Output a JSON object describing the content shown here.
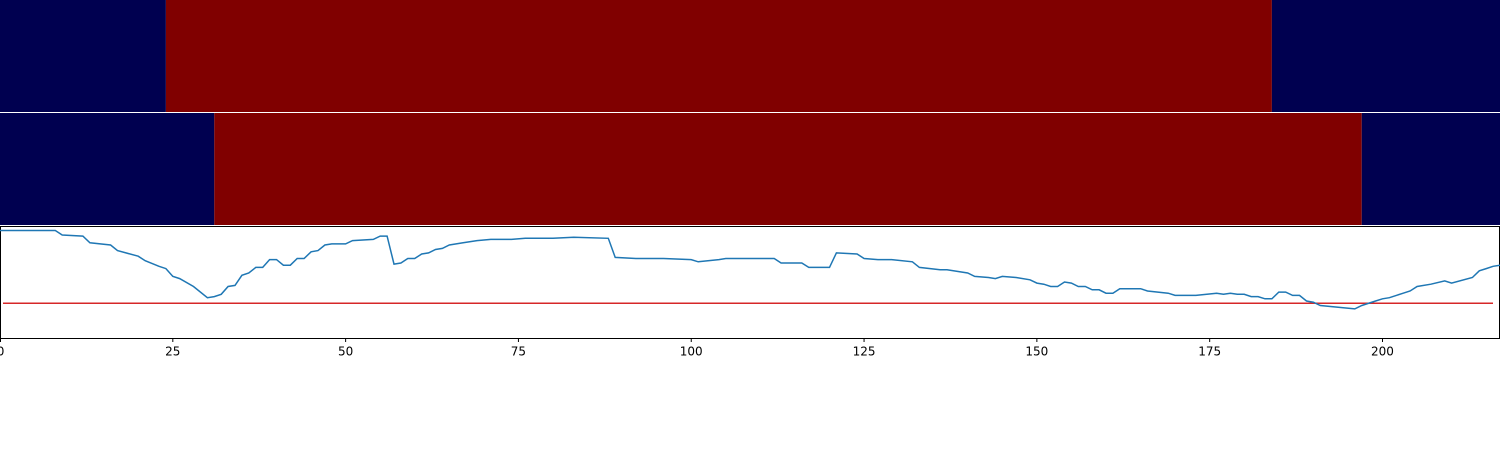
{
  "chart_data": {
    "type": "band-line",
    "xlim": [
      0,
      217
    ],
    "xticks": [
      0,
      25,
      50,
      75,
      100,
      125,
      150,
      175,
      200
    ],
    "band_colors": [
      "#000050",
      "#800000"
    ],
    "bands": [
      {
        "segments": [
          {
            "start": 0,
            "end": 24,
            "value": 0
          },
          {
            "start": 24,
            "end": 184,
            "value": 1
          },
          {
            "start": 184,
            "end": 217,
            "value": 0
          }
        ]
      },
      {
        "segments": [
          {
            "start": 0,
            "end": 31,
            "value": 0
          },
          {
            "start": 31,
            "end": 197,
            "value": 1
          },
          {
            "start": 197,
            "end": 217,
            "value": 0
          }
        ]
      }
    ],
    "ylim": [
      0,
      1
    ],
    "threshold": 0.31,
    "threshold_color": "#d62728",
    "line_color": "#1f77b4",
    "x": [
      0,
      8,
      9,
      12,
      13,
      16,
      17,
      20,
      21,
      23,
      24,
      25,
      26,
      28,
      30,
      31,
      32,
      33,
      34,
      35,
      36,
      37,
      38,
      39,
      40,
      41,
      42,
      43,
      44,
      45,
      46,
      47,
      48,
      50,
      51,
      54,
      55,
      56,
      57,
      58,
      59,
      60,
      61,
      62,
      63,
      64,
      65,
      67,
      69,
      71,
      74,
      76,
      80,
      83,
      88,
      89,
      92,
      94,
      96,
      100,
      101,
      104,
      105,
      108,
      112,
      113,
      116,
      117,
      120,
      121,
      124,
      125,
      127,
      129,
      132,
      133,
      136,
      137,
      140,
      141,
      143,
      144,
      145,
      147,
      149,
      150,
      151,
      152,
      153,
      154,
      155,
      156,
      157,
      158,
      159,
      160,
      161,
      162,
      165,
      166,
      169,
      170,
      173,
      176,
      177,
      178,
      179,
      180,
      181,
      182,
      183,
      184,
      185,
      186,
      187,
      188,
      189,
      190,
      191,
      196,
      197,
      199,
      200,
      201,
      202,
      203,
      204,
      205,
      207,
      209,
      210,
      213,
      214,
      215,
      216,
      217
    ],
    "values": [
      0.96,
      0.96,
      0.92,
      0.91,
      0.85,
      0.83,
      0.78,
      0.73,
      0.69,
      0.64,
      0.62,
      0.55,
      0.53,
      0.46,
      0.36,
      0.37,
      0.39,
      0.46,
      0.47,
      0.56,
      0.58,
      0.63,
      0.63,
      0.7,
      0.7,
      0.65,
      0.65,
      0.71,
      0.71,
      0.77,
      0.78,
      0.83,
      0.84,
      0.84,
      0.87,
      0.88,
      0.91,
      0.91,
      0.66,
      0.67,
      0.71,
      0.71,
      0.75,
      0.76,
      0.79,
      0.8,
      0.83,
      0.85,
      0.87,
      0.88,
      0.88,
      0.89,
      0.89,
      0.9,
      0.89,
      0.72,
      0.71,
      0.71,
      0.71,
      0.7,
      0.68,
      0.7,
      0.71,
      0.71,
      0.71,
      0.67,
      0.67,
      0.63,
      0.63,
      0.76,
      0.75,
      0.71,
      0.7,
      0.7,
      0.68,
      0.63,
      0.61,
      0.61,
      0.58,
      0.55,
      0.54,
      0.53,
      0.55,
      0.54,
      0.52,
      0.49,
      0.48,
      0.46,
      0.46,
      0.5,
      0.49,
      0.46,
      0.46,
      0.43,
      0.43,
      0.4,
      0.4,
      0.44,
      0.44,
      0.42,
      0.4,
      0.38,
      0.38,
      0.4,
      0.39,
      0.4,
      0.39,
      0.39,
      0.37,
      0.37,
      0.35,
      0.35,
      0.41,
      0.41,
      0.38,
      0.38,
      0.33,
      0.32,
      0.29,
      0.26,
      0.29,
      0.33,
      0.35,
      0.36,
      0.38,
      0.4,
      0.42,
      0.46,
      0.48,
      0.51,
      0.49,
      0.54,
      0.6,
      0.62,
      0.64,
      0.65
    ]
  }
}
